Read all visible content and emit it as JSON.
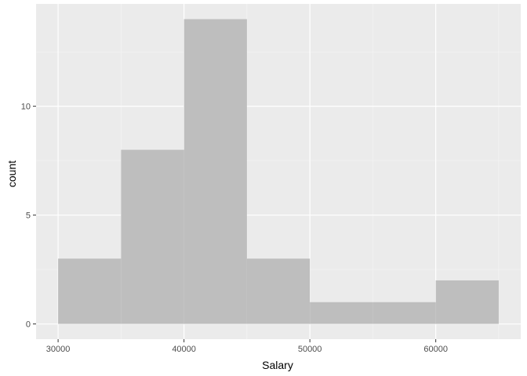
{
  "chart_data": {
    "type": "bar",
    "subtype": "histogram",
    "xlabel": "Salary",
    "ylabel": "count",
    "bins": [
      {
        "x0": 30000,
        "x1": 35000,
        "count": 3
      },
      {
        "x0": 35000,
        "x1": 40000,
        "count": 8
      },
      {
        "x0": 40000,
        "x1": 45000,
        "count": 14
      },
      {
        "x0": 45000,
        "x1": 50000,
        "count": 3
      },
      {
        "x0": 50000,
        "x1": 55000,
        "count": 1
      },
      {
        "x0": 55000,
        "x1": 60000,
        "count": 1
      },
      {
        "x0": 60000,
        "x1": 65000,
        "count": 2
      }
    ],
    "xlim": [
      28250,
      66750
    ],
    "ylim": [
      -0.7,
      14.7
    ],
    "x_ticks": [
      30000,
      40000,
      50000,
      60000
    ],
    "x_minor_ticks": [
      35000,
      45000,
      55000,
      65000
    ],
    "y_ticks": [
      0,
      5,
      10
    ],
    "y_minor_ticks": [
      2.5,
      7.5,
      12.5
    ],
    "x_tick_labels": [
      "30000",
      "40000",
      "50000",
      "60000"
    ],
    "y_tick_labels": [
      "0",
      "5",
      "10"
    ],
    "grid": true,
    "legend": "none",
    "colors": {
      "panel_background": "#ebebeb",
      "grid_major": "#ffffff",
      "grid_minor": "#f5f5f5",
      "bar_fill": "#bebebe",
      "tick_mark": "#333333",
      "tick_text": "#4d4d4d",
      "axis_title": "#000000"
    }
  }
}
